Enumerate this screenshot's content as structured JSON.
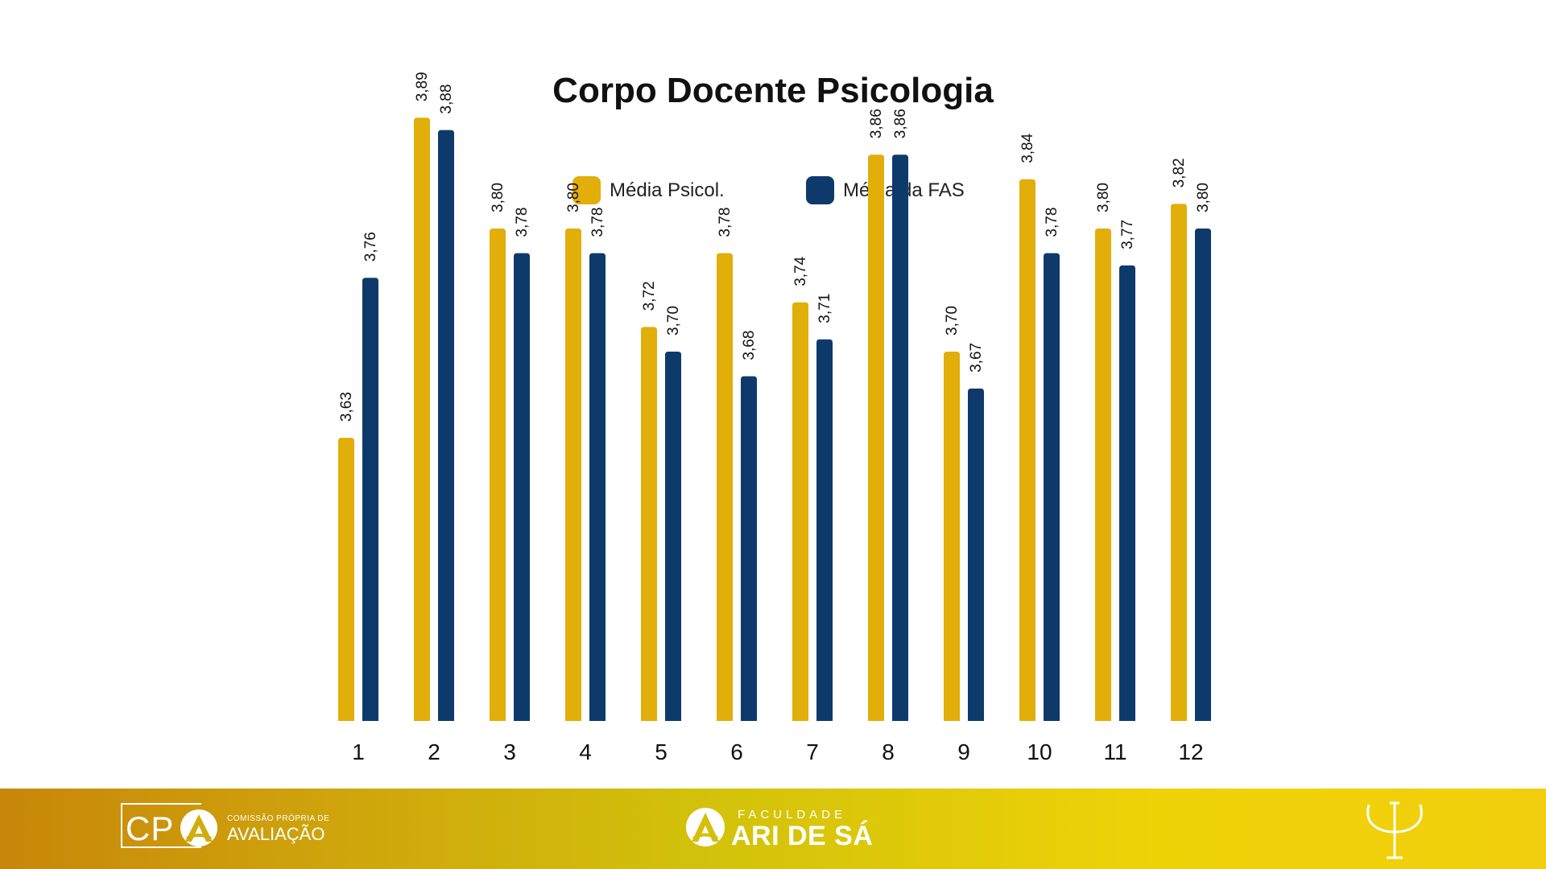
{
  "chart_data": {
    "type": "bar",
    "title": "Corpo Docente Psicologia",
    "categories": [
      "1",
      "2",
      "3",
      "4",
      "5",
      "6",
      "7",
      "8",
      "9",
      "10",
      "11",
      "12"
    ],
    "series": [
      {
        "name": "Média Psicol.",
        "color": "#e1ae0a",
        "values": [
          3.63,
          3.89,
          3.8,
          3.8,
          3.72,
          3.78,
          3.74,
          3.86,
          3.7,
          3.84,
          3.8,
          3.82
        ],
        "labels": [
          "3,63",
          "3,89",
          "3,80",
          "3,80",
          "3,72",
          "3,78",
          "3,74",
          "3,86",
          "3,70",
          "3,84",
          "3,80",
          "3,82"
        ]
      },
      {
        "name": "Média da FAS",
        "color": "#0e3a6b",
        "values": [
          3.76,
          3.88,
          3.78,
          3.78,
          3.7,
          3.68,
          3.71,
          3.86,
          3.67,
          3.78,
          3.77,
          3.8
        ],
        "labels": [
          "3,76",
          "3,88",
          "3,78",
          "3,78",
          "3,70",
          "3,68",
          "3,71",
          "3,86",
          "3,67",
          "3,78",
          "3,77",
          "3,80"
        ]
      }
    ],
    "ylim": [
      3.4,
      4.0
    ],
    "grid": false,
    "legend": "top-center",
    "data_labels": "rotated-vertical"
  },
  "footer": {
    "cpa_letters": "CP",
    "cpa_small": "COMISSÃO PRÓPRIA DE",
    "cpa_big": "AVALIAÇÃO",
    "fas_small": "FACULDADE",
    "fas_big": "ARI DE SÁ",
    "psi_icon": "psi-icon",
    "text_color": "#ffffff"
  }
}
